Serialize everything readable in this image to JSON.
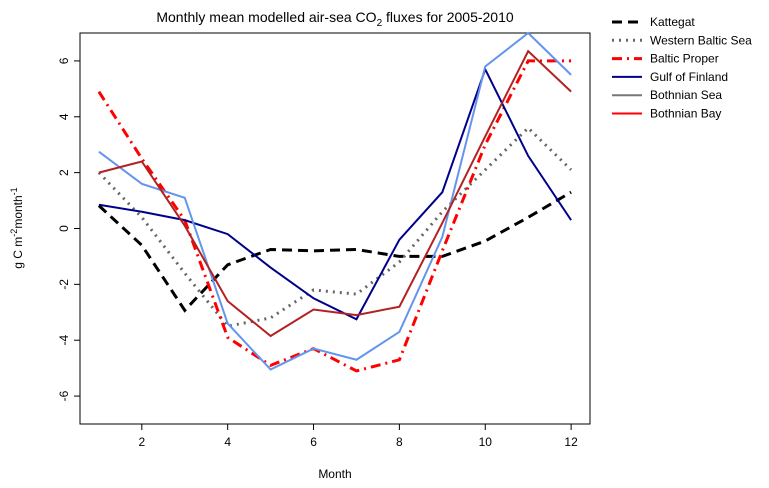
{
  "chart_data": {
    "type": "line",
    "title": [
      "Monthly mean modelled air-sea CO",
      "2",
      " fluxes for 2005-2010"
    ],
    "xlabel": "Month",
    "ylabel": [
      "g C m",
      "-2",
      "month",
      "-1"
    ],
    "x": [
      1,
      2,
      3,
      4,
      5,
      6,
      7,
      8,
      9,
      10,
      11,
      12
    ],
    "xlim": [
      0.56,
      12.44
    ],
    "xticks": [
      2,
      4,
      6,
      8,
      10,
      12
    ],
    "ylim": [
      -7,
      7
    ],
    "yticks": [
      -6,
      -4,
      -2,
      0,
      2,
      4,
      6
    ],
    "legend": "outside-right",
    "series": [
      {
        "name": "Kattegat",
        "color": "#000000",
        "legend_color": "#000000",
        "linestyle": "dashed",
        "width": 3,
        "values": [
          0.82,
          -0.6,
          -2.93,
          -1.3,
          -0.75,
          -0.8,
          -0.75,
          -1.0,
          -1.0,
          -0.45,
          0.4,
          1.3
        ]
      },
      {
        "name": "Western Baltic Sea",
        "color": "#666666",
        "legend_color": "#666666",
        "linestyle": "dotted",
        "width": 3,
        "values": [
          2.0,
          0.4,
          -1.6,
          -3.5,
          -3.2,
          -2.2,
          -2.35,
          -1.2,
          0.6,
          2.1,
          3.6,
          2.1
        ]
      },
      {
        "name": "Baltic Proper",
        "color": "#ff0000",
        "legend_color": "#ff0000",
        "linestyle": "dotdash",
        "width": 3,
        "values": [
          4.9,
          2.5,
          0.3,
          -3.9,
          -4.9,
          -4.3,
          -5.1,
          -4.7,
          -0.8,
          3.0,
          6.0,
          6.0
        ]
      },
      {
        "name": "Gulf of Finland",
        "color": "#00008b",
        "legend_color": "#00008b",
        "linestyle": "solid",
        "width": 2,
        "values": [
          0.85,
          0.6,
          0.3,
          -0.2,
          -1.4,
          -2.5,
          -3.25,
          -0.4,
          1.3,
          5.7,
          2.6,
          0.3
        ]
      },
      {
        "name": "Bothnian Sea",
        "color": "#6495ed",
        "legend_color": "#777777",
        "linestyle": "solid",
        "width": 2,
        "values": [
          2.75,
          1.6,
          1.1,
          -3.4,
          -5.05,
          -4.3,
          -4.7,
          -3.7,
          -0.3,
          5.8,
          7.0,
          5.5
        ]
      },
      {
        "name": "Bothnian Bay",
        "color": "#b22222",
        "legend_color": "#ff0000",
        "linestyle": "solid",
        "width": 2,
        "values": [
          2.0,
          2.4,
          0.1,
          -2.6,
          -3.85,
          -2.9,
          -3.1,
          -2.8,
          0.2,
          3.3,
          6.35,
          4.9
        ]
      }
    ]
  }
}
